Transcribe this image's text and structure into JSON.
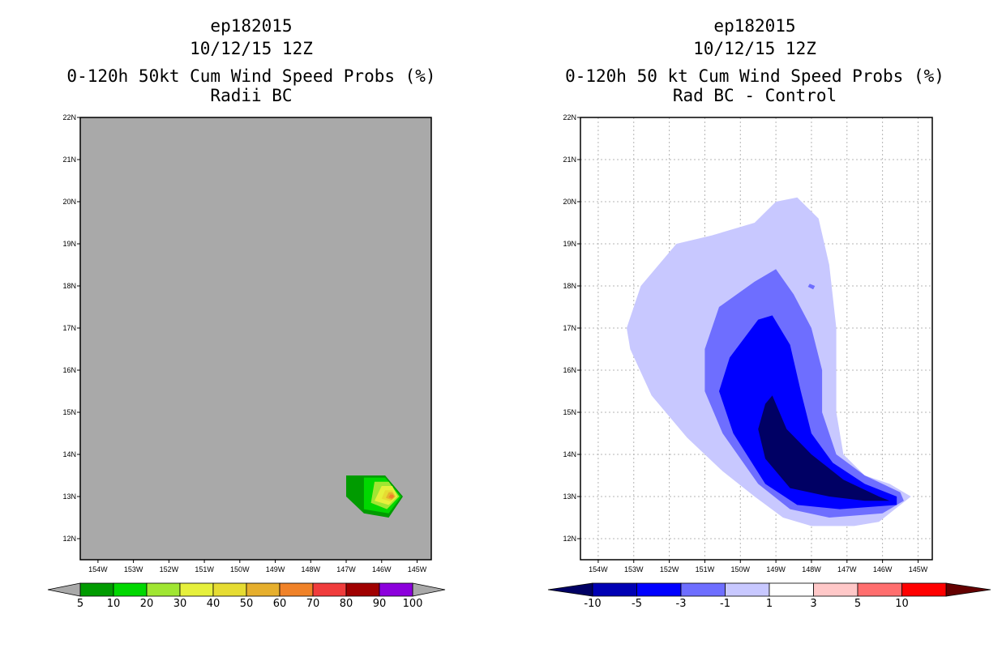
{
  "chart_data": [
    {
      "type": "contour-map",
      "title_lines": [
        "ep182015",
        "10/12/15 12Z",
        "0-120h 50kt Cum Wind Speed Probs (%)",
        "Radii BC"
      ],
      "xlabel": "",
      "ylabel": "",
      "x_ticks": [
        "154W",
        "153W",
        "152W",
        "151W",
        "150W",
        "149W",
        "148W",
        "147W",
        "146W",
        "145W"
      ],
      "y_ticks": [
        "22N",
        "21N",
        "20N",
        "19N",
        "18N",
        "17N",
        "16N",
        "15N",
        "14N",
        "13N",
        "12N"
      ],
      "xlim": [
        -154.5,
        -144.6
      ],
      "ylim": [
        11.5,
        22.0
      ],
      "background_color": "#a9a9a9",
      "grid": false,
      "colorbar": {
        "labels": [
          "5",
          "10",
          "20",
          "30",
          "40",
          "50",
          "60",
          "70",
          "80",
          "90",
          "100"
        ],
        "colors": [
          "#009b00",
          "#00d800",
          "#a0e632",
          "#e6f03c",
          "#e6dc32",
          "#e6af2d",
          "#f08228",
          "#f03c3c",
          "#a00000",
          "#8c00dc"
        ],
        "below_color": "#a9a9a9",
        "above_color": "#a9a9a9"
      },
      "contours": [
        {
          "level": "5-10",
          "color": "#009b00",
          "points": [
            [
              -147.0,
              13.5
            ],
            [
              -146.2,
              13.5
            ],
            [
              -145.9,
              13.5
            ],
            [
              -145.4,
              13.0
            ],
            [
              -145.8,
              12.5
            ],
            [
              -146.5,
              12.6
            ],
            [
              -147.0,
              13.0
            ]
          ]
        },
        {
          "level": "10-20",
          "color": "#00d800",
          "points": [
            [
              -146.5,
              13.45
            ],
            [
              -145.9,
              13.45
            ],
            [
              -145.45,
              13.0
            ],
            [
              -145.8,
              12.6
            ],
            [
              -146.5,
              12.7
            ]
          ]
        },
        {
          "level": "20-30",
          "color": "#a0e632",
          "points": [
            [
              -146.2,
              13.35
            ],
            [
              -145.8,
              13.35
            ],
            [
              -145.5,
              13.0
            ],
            [
              -145.85,
              12.7
            ],
            [
              -146.3,
              12.85
            ]
          ]
        },
        {
          "level": "30-40",
          "color": "#e6f03c",
          "points": [
            [
              -146.0,
              13.25
            ],
            [
              -145.7,
              13.25
            ],
            [
              -145.55,
              13.0
            ],
            [
              -145.8,
              12.8
            ],
            [
              -146.2,
              12.9
            ]
          ]
        },
        {
          "level": "40-50",
          "color": "#e6dc32",
          "points": [
            [
              -145.9,
              13.15
            ],
            [
              -145.7,
              13.15
            ],
            [
              -145.6,
              13.0
            ],
            [
              -145.75,
              12.88
            ],
            [
              -146.0,
              12.95
            ]
          ]
        },
        {
          "level": "50-60",
          "color": "#e6af2d",
          "points": [
            [
              -145.8,
              13.1
            ],
            [
              -145.7,
              13.1
            ],
            [
              -145.62,
              13.0
            ],
            [
              -145.72,
              12.92
            ],
            [
              -145.88,
              12.97
            ]
          ]
        },
        {
          "level": "60-70",
          "color": "#f08228",
          "points": [
            [
              -145.75,
              13.05
            ],
            [
              -145.68,
              13.04
            ],
            [
              -145.65,
              13.0
            ],
            [
              -145.7,
              12.95
            ],
            [
              -145.8,
              12.98
            ]
          ]
        }
      ]
    },
    {
      "type": "contour-map",
      "title_lines": [
        "ep182015",
        "10/12/15 12Z",
        "0-120h 50 kt Cum Wind Speed Probs (%)",
        "Rad BC - Control"
      ],
      "xlabel": "",
      "ylabel": "",
      "x_ticks": [
        "154W",
        "153W",
        "152W",
        "151W",
        "150W",
        "149W",
        "148W",
        "147W",
        "146W",
        "145W"
      ],
      "y_ticks": [
        "22N",
        "21N",
        "20N",
        "19N",
        "18N",
        "17N",
        "16N",
        "15N",
        "14N",
        "13N",
        "12N"
      ],
      "xlim": [
        -154.5,
        -144.6
      ],
      "ylim": [
        11.5,
        22.0
      ],
      "background_color": "#ffffff",
      "grid": true,
      "colorbar": {
        "labels": [
          "-10",
          "-5",
          "-3",
          "-1",
          "1",
          "3",
          "5",
          "10"
        ],
        "colors": [
          "#0000b4",
          "#0000ff",
          "#6e6eff",
          "#c8c8ff",
          "#ffffff",
          "#ffc8c8",
          "#ff6e6e",
          "#ff0000"
        ],
        "below_color": "#000064",
        "above_color": "#640000"
      },
      "contours": [
        {
          "level": "-3 to -1",
          "color": "#c8c8ff",
          "points": [
            [
              -149.0,
              20.0
            ],
            [
              -148.4,
              20.1
            ],
            [
              -147.8,
              19.6
            ],
            [
              -147.5,
              18.5
            ],
            [
              -147.3,
              17.0
            ],
            [
              -147.3,
              16.0
            ],
            [
              -147.3,
              15.0
            ],
            [
              -147.1,
              14.0
            ],
            [
              -146.5,
              13.5
            ],
            [
              -145.8,
              13.3
            ],
            [
              -145.2,
              13.0
            ],
            [
              -145.5,
              12.8
            ],
            [
              -146.1,
              12.4
            ],
            [
              -146.8,
              12.3
            ],
            [
              -148.0,
              12.3
            ],
            [
              -148.8,
              12.5
            ],
            [
              -149.6,
              13.0
            ],
            [
              -150.5,
              13.6
            ],
            [
              -151.5,
              14.4
            ],
            [
              -152.5,
              15.4
            ],
            [
              -153.1,
              16.5
            ],
            [
              -153.2,
              17.0
            ],
            [
              -152.8,
              18.0
            ],
            [
              -151.8,
              19.0
            ],
            [
              -150.8,
              19.2
            ],
            [
              -149.6,
              19.5
            ]
          ]
        },
        {
          "level": "-5 to -3",
          "color": "#6e6eff",
          "points": [
            [
              -149.0,
              18.4
            ],
            [
              -148.5,
              17.8
            ],
            [
              -148.0,
              17.0
            ],
            [
              -147.7,
              16.0
            ],
            [
              -147.7,
              15.0
            ],
            [
              -147.3,
              14.0
            ],
            [
              -146.5,
              13.5
            ],
            [
              -145.5,
              13.1
            ],
            [
              -145.4,
              12.9
            ],
            [
              -146.0,
              12.6
            ],
            [
              -147.5,
              12.5
            ],
            [
              -148.6,
              12.7
            ],
            [
              -149.5,
              13.3
            ],
            [
              -150.5,
              14.5
            ],
            [
              -151.0,
              15.5
            ],
            [
              -151.0,
              16.5
            ],
            [
              -150.6,
              17.5
            ],
            [
              -149.6,
              18.1
            ]
          ]
        },
        {
          "level": "-10 to -5",
          "color": "#0000ff",
          "points": [
            [
              -149.1,
              17.3
            ],
            [
              -148.6,
              16.6
            ],
            [
              -148.3,
              15.5
            ],
            [
              -148.0,
              14.5
            ],
            [
              -147.4,
              13.8
            ],
            [
              -146.5,
              13.3
            ],
            [
              -145.6,
              13.0
            ],
            [
              -145.6,
              12.8
            ],
            [
              -147.2,
              12.7
            ],
            [
              -148.4,
              12.8
            ],
            [
              -149.3,
              13.3
            ],
            [
              -150.2,
              14.5
            ],
            [
              -150.6,
              15.5
            ],
            [
              -150.3,
              16.3
            ],
            [
              -149.5,
              17.2
            ]
          ]
        },
        {
          "level": "< -10",
          "color": "#000064",
          "points": [
            [
              -149.1,
              15.4
            ],
            [
              -148.7,
              14.6
            ],
            [
              -148.0,
              14.0
            ],
            [
              -147.1,
              13.4
            ],
            [
              -146.1,
              13.0
            ],
            [
              -145.8,
              12.9
            ],
            [
              -146.5,
              12.9
            ],
            [
              -147.5,
              13.0
            ],
            [
              -148.6,
              13.2
            ],
            [
              -149.3,
              13.9
            ],
            [
              -149.5,
              14.6
            ],
            [
              -149.3,
              15.2
            ]
          ]
        },
        {
          "level": "-5 to -3 (small)",
          "color": "#6e6eff",
          "points": [
            [
              -148.05,
              18.05
            ],
            [
              -147.9,
              18.0
            ],
            [
              -147.95,
              17.92
            ],
            [
              -148.1,
              17.98
            ]
          ]
        }
      ]
    }
  ]
}
